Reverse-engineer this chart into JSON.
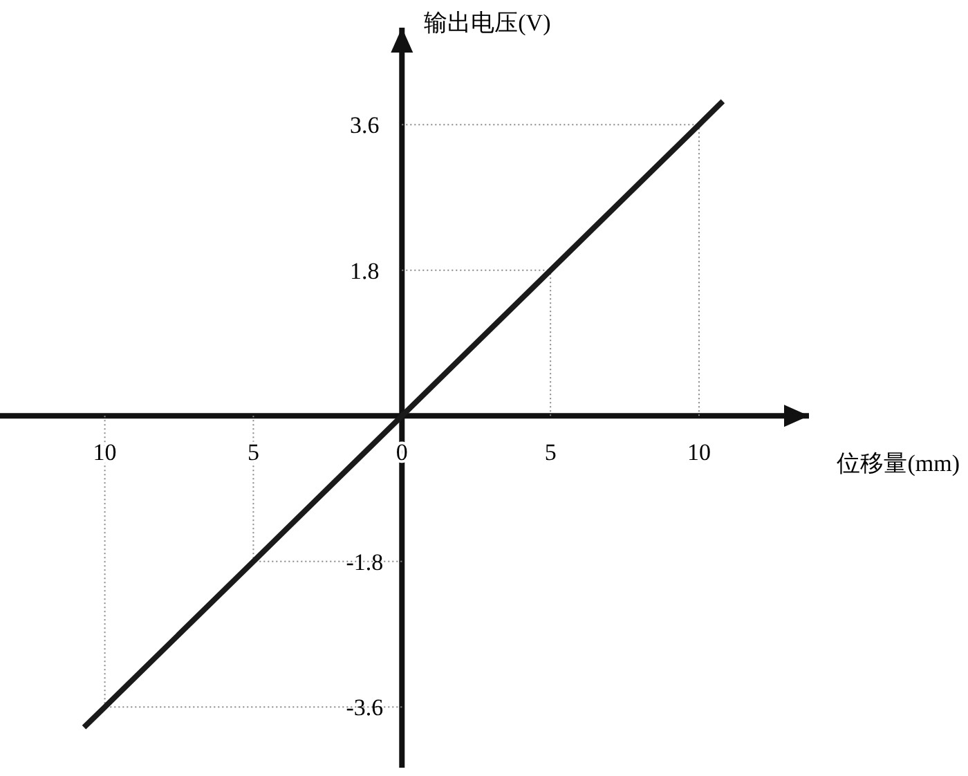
{
  "chart_data": {
    "type": "line",
    "xlabel": "位移量(mm)",
    "ylabel": "输出电压(V)",
    "x": [
      -10.7,
      -10,
      -5,
      0,
      5,
      10,
      10.8
    ],
    "series": [
      {
        "color": "#1a1a1a",
        "values": [
          -3.85,
          -3.6,
          -1.8,
          0,
          1.8,
          3.6,
          3.89
        ]
      }
    ],
    "xlim": [
      -13.9,
      13.7
    ],
    "ylim": [
      -4.35,
      4.8
    ],
    "xticks": [
      {
        "value": -10,
        "label": "10"
      },
      {
        "value": -5,
        "label": "5"
      },
      0,
      5,
      10
    ],
    "yticks": [
      -3.6,
      -1.8,
      1.8,
      3.6
    ],
    "ref_lines": [
      {
        "axis": "x",
        "value": -10,
        "color": "#888888",
        "line_style": "dotted"
      },
      {
        "axis": "x",
        "value": -5,
        "color": "#888888",
        "line_style": "dotted"
      },
      {
        "axis": "x",
        "value": 5,
        "color": "#888888",
        "line_style": "dotted"
      },
      {
        "axis": "x",
        "value": 10,
        "color": "#888888",
        "line_style": "dotted"
      },
      {
        "axis": "y",
        "value": -3.6,
        "color": "#888888",
        "line_style": "dotted"
      },
      {
        "axis": "y",
        "value": -1.8,
        "color": "#888888",
        "line_style": "dotted"
      },
      {
        "axis": "y",
        "value": 1.8,
        "color": "#888888",
        "line_style": "dotted"
      },
      {
        "axis": "y",
        "value": 3.6,
        "color": "#888888",
        "line_style": "dotted"
      }
    ],
    "marker": "none",
    "line_style": "solid"
  }
}
